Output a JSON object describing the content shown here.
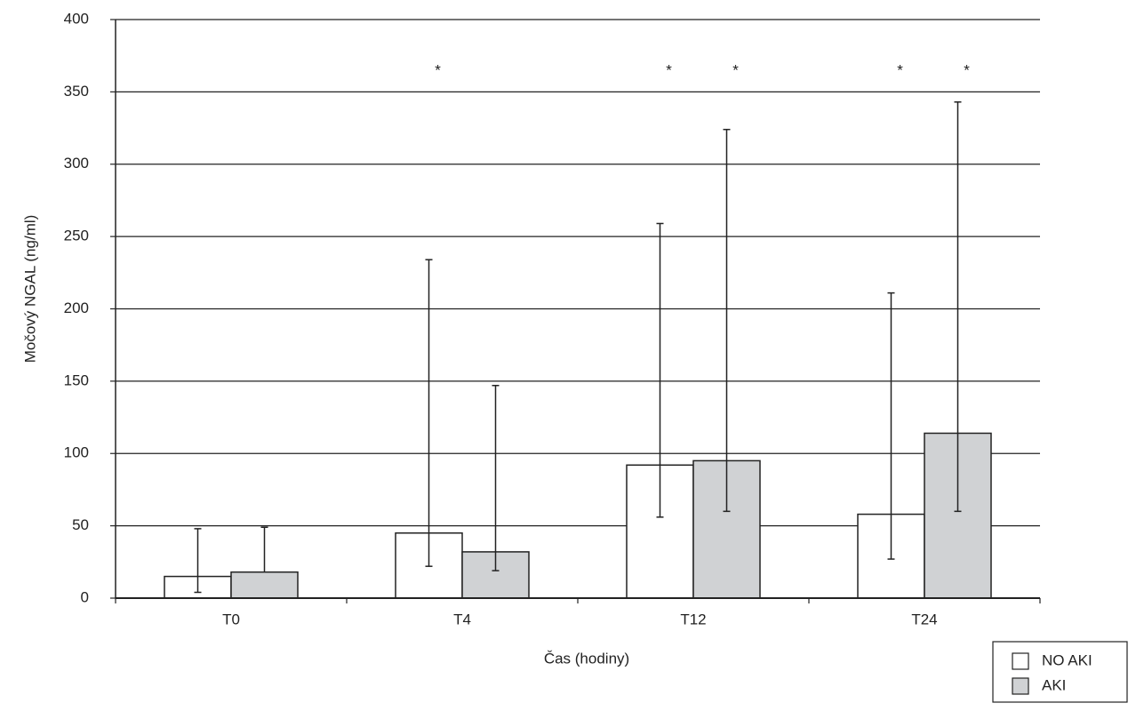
{
  "chart_data": {
    "type": "bar",
    "x_label": "Čas (hodiny)",
    "y_label": "Močový NGAL (ng/ml)",
    "categories": [
      "T0",
      "T4",
      "T12",
      "T24"
    ],
    "series": [
      {
        "name": "NO AKI",
        "color": "#ffffff",
        "values": [
          15,
          45,
          92,
          58
        ],
        "error_low": [
          4,
          22,
          56,
          27
        ],
        "error_high": [
          48,
          234,
          259,
          211
        ],
        "annotations": [
          null,
          "*",
          "*",
          "*"
        ]
      },
      {
        "name": "AKI",
        "color": "#d0d2d4",
        "values": [
          18,
          32,
          95,
          114
        ],
        "error_low": [
          null,
          19,
          60,
          60
        ],
        "error_high": [
          49,
          147,
          324,
          343
        ],
        "annotations": [
          null,
          null,
          "*",
          "*"
        ]
      }
    ],
    "ylim": [
      0,
      400
    ],
    "yticks": [
      0,
      50,
      100,
      150,
      200,
      250,
      300,
      350,
      400
    ],
    "grid": true,
    "legend": "bottom-right"
  }
}
